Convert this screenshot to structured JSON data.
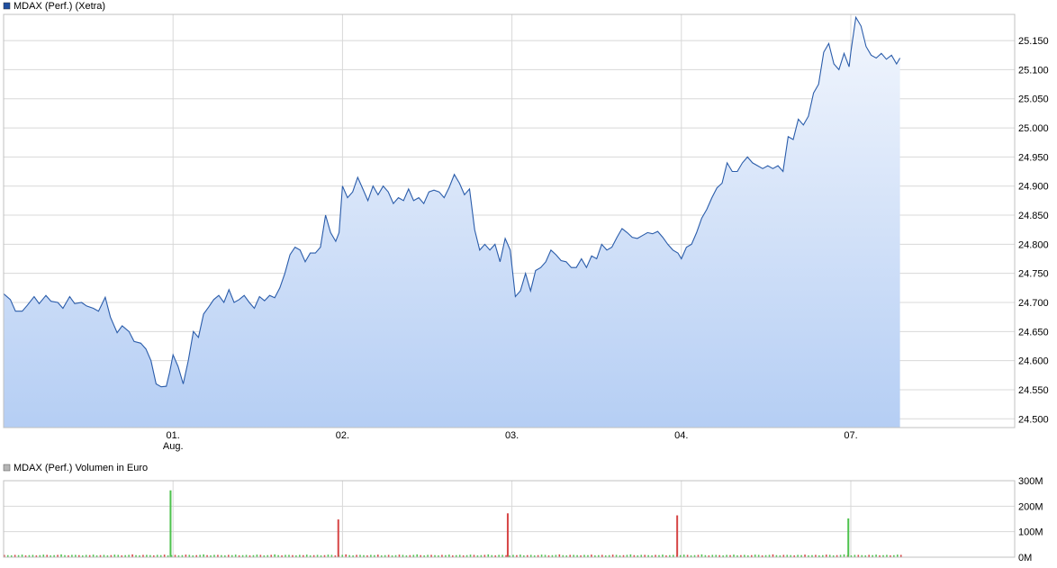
{
  "colors": {
    "price_line": "#2a5caa",
    "price_fill_top": "#f2f6fd",
    "price_fill_bottom": "#b5cef4",
    "grid": "#d8d8d8",
    "border": "#c0c0c0",
    "volume_up": "#4dc24d",
    "volume_down": "#d64545",
    "legend_price": "#1f4f9f",
    "legend_volume": "#b5b5b5"
  },
  "chart_data": [
    {
      "type": "line",
      "legend": "MDAX (Perf.) (Xetra)",
      "ylim": [
        24485,
        25195
      ],
      "y_ticks": [
        24500,
        24550,
        24600,
        24650,
        24700,
        24750,
        24800,
        24850,
        24900,
        24950,
        25000,
        25050,
        25100,
        25150
      ],
      "y_tick_labels": [
        "24.500",
        "24.550",
        "24.600",
        "24.650",
        "24.700",
        "24.750",
        "24.800",
        "24.850",
        "24.900",
        "24.950",
        "25.000",
        "25.050",
        "25.100",
        "25.150"
      ],
      "x_ticks": [
        {
          "label": "01.",
          "sublabel": "Aug.",
          "session": 1
        },
        {
          "label": "02.",
          "sublabel": "",
          "session": 2
        },
        {
          "label": "03.",
          "sublabel": "",
          "session": 3
        },
        {
          "label": "04.",
          "sublabel": "",
          "session": 4
        },
        {
          "label": "07.",
          "sublabel": "",
          "session": 5
        }
      ],
      "x_range_sessions": [
        0,
        5.97
      ],
      "series": [
        {
          "points": [
            [
              0.0,
              24715
            ],
            [
              0.04,
              24705
            ],
            [
              0.07,
              24685
            ],
            [
              0.11,
              24685
            ],
            [
              0.14,
              24695
            ],
            [
              0.18,
              24710
            ],
            [
              0.21,
              24698
            ],
            [
              0.25,
              24712
            ],
            [
              0.28,
              24702
            ],
            [
              0.32,
              24700
            ],
            [
              0.35,
              24690
            ],
            [
              0.39,
              24710
            ],
            [
              0.42,
              24698
            ],
            [
              0.46,
              24700
            ],
            [
              0.49,
              24694
            ],
            [
              0.53,
              24690
            ],
            [
              0.56,
              24685
            ],
            [
              0.6,
              24709
            ],
            [
              0.63,
              24675
            ],
            [
              0.67,
              24648
            ],
            [
              0.7,
              24660
            ],
            [
              0.74,
              24650
            ],
            [
              0.77,
              24633
            ],
            [
              0.81,
              24630
            ],
            [
              0.84,
              24620
            ],
            [
              0.87,
              24600
            ],
            [
              0.9,
              24560
            ],
            [
              0.93,
              24555
            ],
            [
              0.96,
              24556
            ],
            [
              0.98,
              24580
            ],
            [
              1.0,
              24610
            ],
            [
              1.03,
              24590
            ],
            [
              1.06,
              24560
            ],
            [
              1.09,
              24600
            ],
            [
              1.12,
              24650
            ],
            [
              1.15,
              24640
            ],
            [
              1.18,
              24680
            ],
            [
              1.21,
              24692
            ],
            [
              1.24,
              24705
            ],
            [
              1.27,
              24712
            ],
            [
              1.3,
              24700
            ],
            [
              1.33,
              24722
            ],
            [
              1.36,
              24700
            ],
            [
              1.39,
              24705
            ],
            [
              1.42,
              24712
            ],
            [
              1.45,
              24700
            ],
            [
              1.48,
              24690
            ],
            [
              1.51,
              24710
            ],
            [
              1.54,
              24703
            ],
            [
              1.57,
              24712
            ],
            [
              1.6,
              24708
            ],
            [
              1.63,
              24725
            ],
            [
              1.66,
              24750
            ],
            [
              1.69,
              24782
            ],
            [
              1.72,
              24795
            ],
            [
              1.75,
              24790
            ],
            [
              1.78,
              24770
            ],
            [
              1.81,
              24785
            ],
            [
              1.84,
              24785
            ],
            [
              1.87,
              24795
            ],
            [
              1.9,
              24850
            ],
            [
              1.93,
              24820
            ],
            [
              1.96,
              24805
            ],
            [
              1.98,
              24820
            ],
            [
              2.0,
              24900
            ],
            [
              2.03,
              24880
            ],
            [
              2.06,
              24890
            ],
            [
              2.09,
              24915
            ],
            [
              2.12,
              24895
            ],
            [
              2.15,
              24875
            ],
            [
              2.18,
              24900
            ],
            [
              2.21,
              24885
            ],
            [
              2.24,
              24900
            ],
            [
              2.27,
              24890
            ],
            [
              2.3,
              24870
            ],
            [
              2.33,
              24880
            ],
            [
              2.36,
              24875
            ],
            [
              2.39,
              24895
            ],
            [
              2.42,
              24875
            ],
            [
              2.45,
              24880
            ],
            [
              2.48,
              24870
            ],
            [
              2.51,
              24890
            ],
            [
              2.54,
              24893
            ],
            [
              2.57,
              24890
            ],
            [
              2.6,
              24880
            ],
            [
              2.63,
              24898
            ],
            [
              2.66,
              24920
            ],
            [
              2.69,
              24905
            ],
            [
              2.72,
              24885
            ],
            [
              2.75,
              24895
            ],
            [
              2.78,
              24825
            ],
            [
              2.81,
              24790
            ],
            [
              2.84,
              24800
            ],
            [
              2.87,
              24790
            ],
            [
              2.9,
              24800
            ],
            [
              2.93,
              24770
            ],
            [
              2.96,
              24810
            ],
            [
              2.99,
              24790
            ],
            [
              3.02,
              24710
            ],
            [
              3.05,
              24720
            ],
            [
              3.08,
              24750
            ],
            [
              3.11,
              24720
            ],
            [
              3.14,
              24755
            ],
            [
              3.17,
              24760
            ],
            [
              3.2,
              24770
            ],
            [
              3.23,
              24790
            ],
            [
              3.26,
              24782
            ],
            [
              3.29,
              24772
            ],
            [
              3.32,
              24770
            ],
            [
              3.35,
              24760
            ],
            [
              3.38,
              24760
            ],
            [
              3.41,
              24775
            ],
            [
              3.44,
              24760
            ],
            [
              3.47,
              24780
            ],
            [
              3.5,
              24775
            ],
            [
              3.53,
              24800
            ],
            [
              3.56,
              24790
            ],
            [
              3.59,
              24795
            ],
            [
              3.62,
              24812
            ],
            [
              3.65,
              24827
            ],
            [
              3.68,
              24820
            ],
            [
              3.71,
              24812
            ],
            [
              3.74,
              24810
            ],
            [
              3.77,
              24815
            ],
            [
              3.8,
              24820
            ],
            [
              3.83,
              24818
            ],
            [
              3.86,
              24822
            ],
            [
              3.89,
              24812
            ],
            [
              3.92,
              24800
            ],
            [
              3.95,
              24790
            ],
            [
              3.98,
              24785
            ],
            [
              4.0,
              24775
            ],
            [
              4.03,
              24795
            ],
            [
              4.06,
              24800
            ],
            [
              4.09,
              24820
            ],
            [
              4.12,
              24845
            ],
            [
              4.15,
              24860
            ],
            [
              4.18,
              24880
            ],
            [
              4.21,
              24897
            ],
            [
              4.24,
              24905
            ],
            [
              4.27,
              24940
            ],
            [
              4.3,
              24925
            ],
            [
              4.33,
              24925
            ],
            [
              4.36,
              24940
            ],
            [
              4.39,
              24950
            ],
            [
              4.42,
              24940
            ],
            [
              4.45,
              24935
            ],
            [
              4.48,
              24930
            ],
            [
              4.51,
              24935
            ],
            [
              4.54,
              24930
            ],
            [
              4.57,
              24935
            ],
            [
              4.6,
              24925
            ],
            [
              4.63,
              24985
            ],
            [
              4.66,
              24980
            ],
            [
              4.69,
              25015
            ],
            [
              4.72,
              25005
            ],
            [
              4.75,
              25020
            ],
            [
              4.78,
              25060
            ],
            [
              4.81,
              25075
            ],
            [
              4.84,
              25130
            ],
            [
              4.87,
              25145
            ],
            [
              4.9,
              25110
            ],
            [
              4.93,
              25100
            ],
            [
              4.96,
              25128
            ],
            [
              4.99,
              25105
            ],
            [
              5.0,
              25130
            ],
            [
              5.03,
              25190
            ],
            [
              5.06,
              25175
            ],
            [
              5.09,
              25140
            ],
            [
              5.12,
              25125
            ],
            [
              5.15,
              25120
            ],
            [
              5.18,
              25128
            ],
            [
              5.21,
              25118
            ],
            [
              5.24,
              25125
            ],
            [
              5.27,
              25110
            ],
            [
              5.29,
              25120
            ]
          ]
        }
      ]
    },
    {
      "type": "bar",
      "legend": "MDAX (Perf.) Volumen in Euro",
      "ylim": [
        0,
        300
      ],
      "y_ticks": [
        0,
        100,
        200,
        300
      ],
      "y_tick_labels": [
        "0M",
        "100M",
        "200M",
        "300M"
      ],
      "unit": "M EUR",
      "x_range_sessions": [
        0,
        5.97
      ],
      "bar_interval_sessions": 0.021,
      "bar_count": 253,
      "baseline_volume": [
        9,
        8,
        7,
        9,
        8,
        10,
        7,
        8,
        9,
        7,
        8,
        10,
        9,
        7,
        8,
        9,
        11,
        8,
        7,
        9
      ],
      "spikes": [
        {
          "session": 0.98,
          "value": 262,
          "direction": "up"
        },
        {
          "session": 1.97,
          "value": 148,
          "direction": "down"
        },
        {
          "session": 2.97,
          "value": 172,
          "direction": "down"
        },
        {
          "session": 3.97,
          "value": 164,
          "direction": "down"
        },
        {
          "session": 4.98,
          "value": 152,
          "direction": "up"
        }
      ]
    }
  ]
}
